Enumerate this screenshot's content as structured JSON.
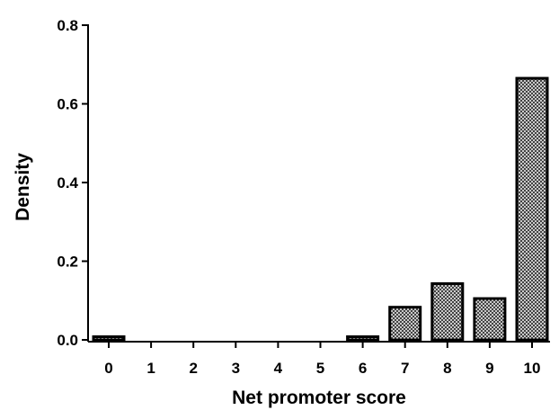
{
  "chart_data": {
    "type": "bar",
    "title": "",
    "xlabel": "Net promoter score",
    "ylabel": "Density",
    "categories": [
      "0",
      "1",
      "2",
      "3",
      "4",
      "5",
      "6",
      "7",
      "8",
      "9",
      "10"
    ],
    "values": [
      0.008,
      0.0,
      0.0,
      0.0,
      0.0,
      0.0,
      0.008,
      0.083,
      0.143,
      0.105,
      0.665
    ],
    "ylim": [
      0,
      0.8
    ],
    "yticks": [
      "0.0",
      "0.2",
      "0.4",
      "0.6",
      "0.8"
    ],
    "ytick_values": [
      0,
      0.2,
      0.4,
      0.6,
      0.8
    ],
    "grid": false,
    "bar_fill_pattern": "crosshatch",
    "colors": {
      "bar_fill": "#9a9a9a",
      "bar_stroke": "#000000",
      "axis": "#000000"
    }
  }
}
